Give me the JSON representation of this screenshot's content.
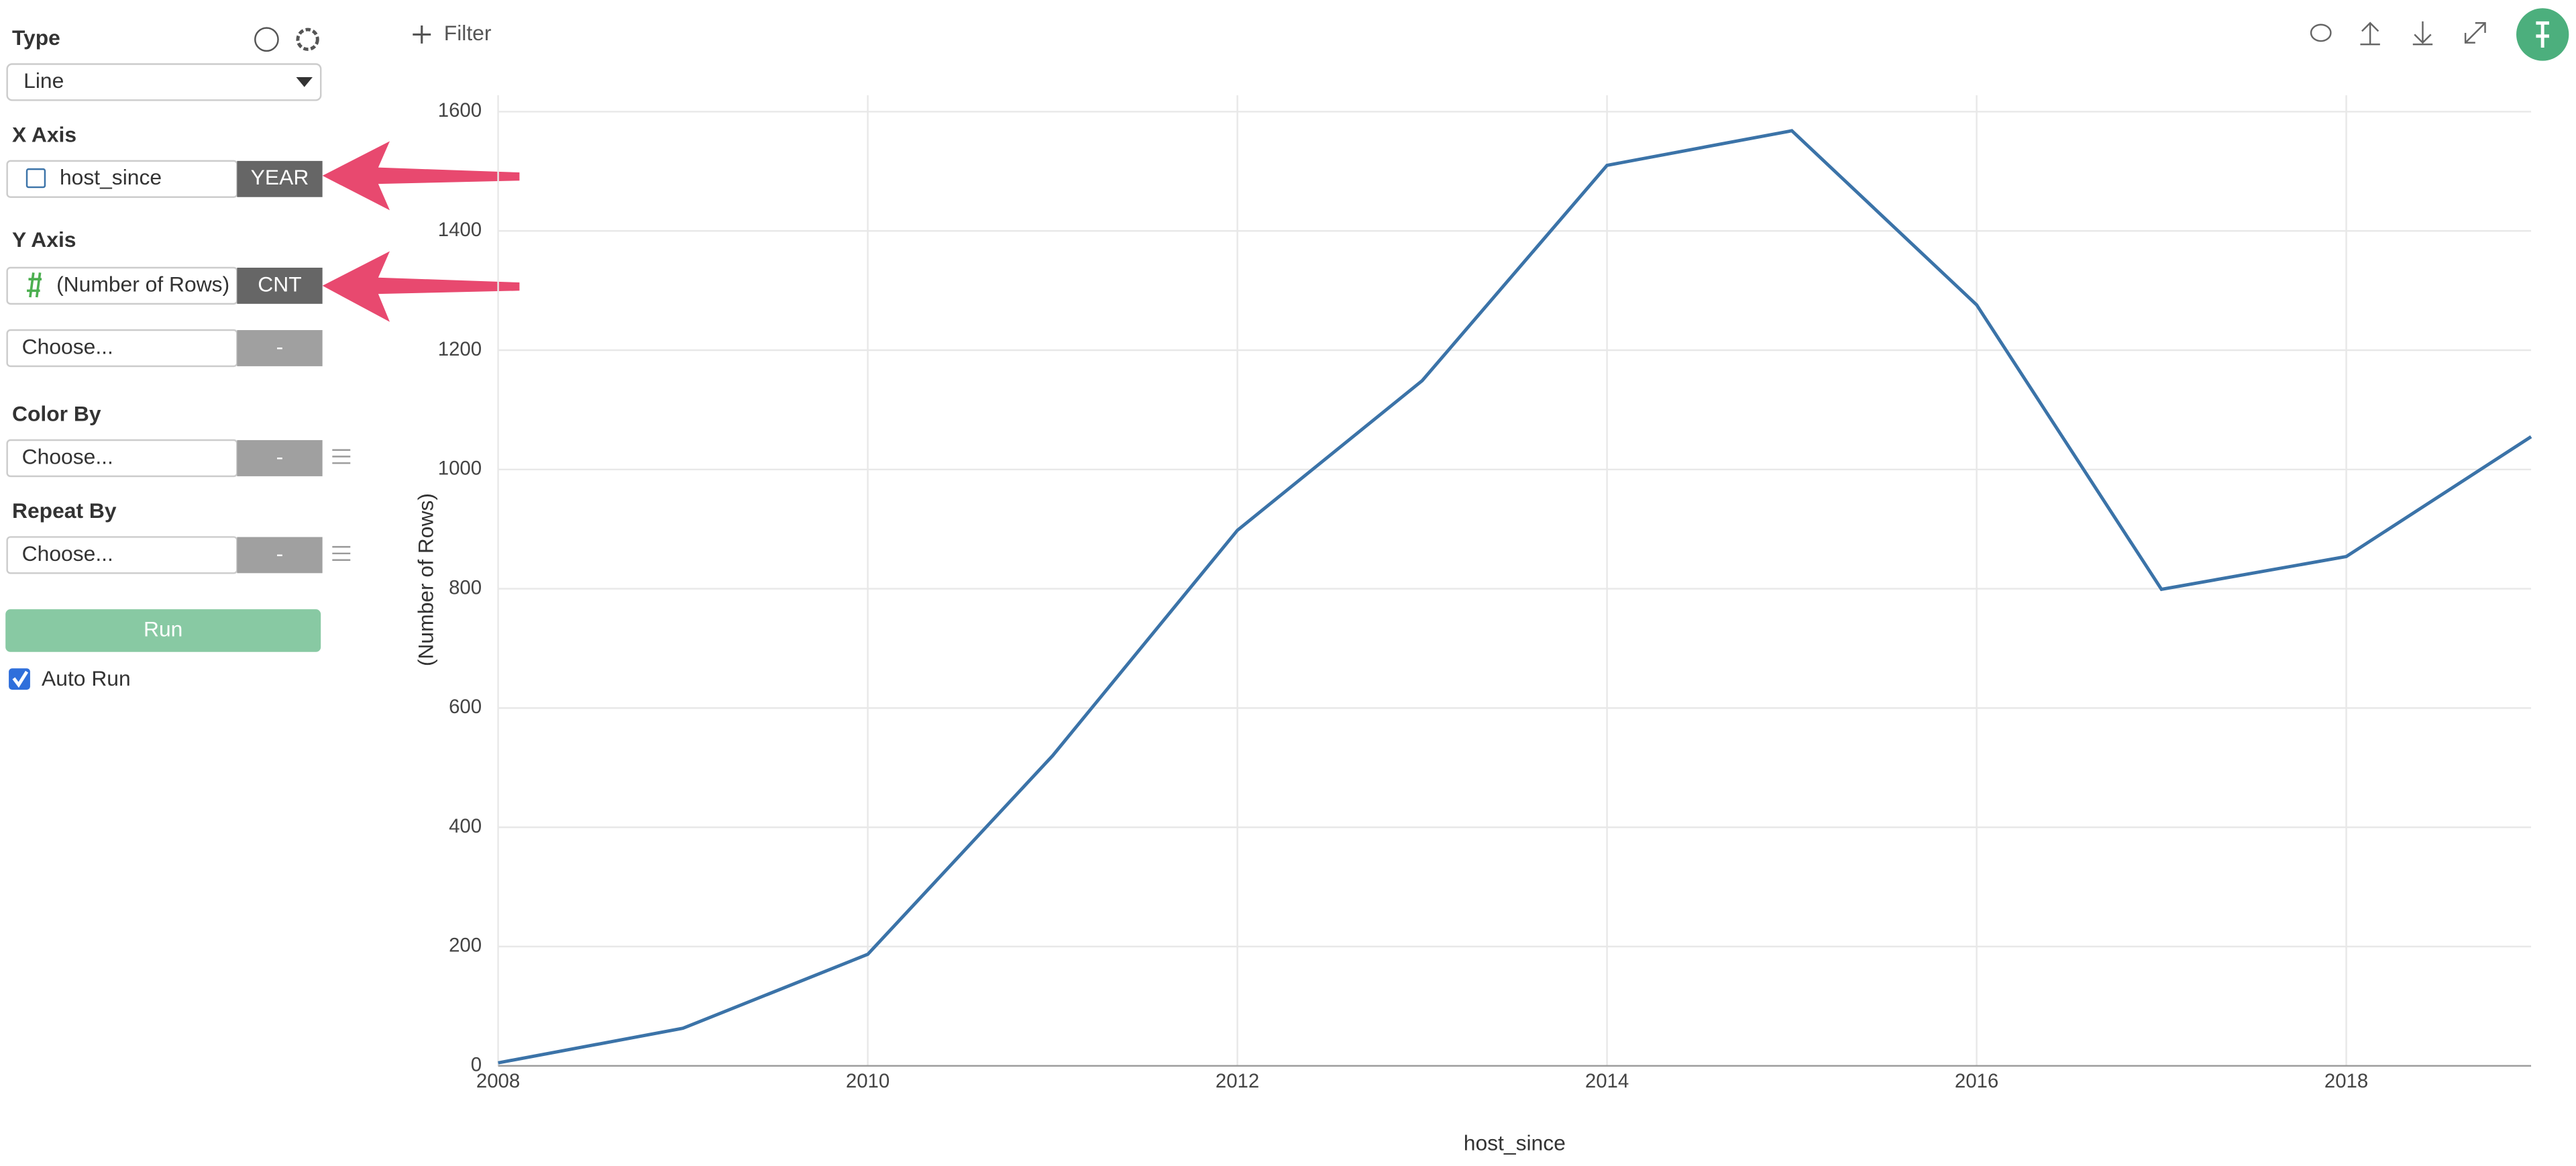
{
  "sidebar": {
    "type_label": "Type",
    "type_value": "Line",
    "x_axis_label": "X Axis",
    "x_field": "host_since",
    "x_agg": "YEAR",
    "y_axis_label": "Y Axis",
    "y_field": "(Number of Rows)",
    "y_agg": "CNT",
    "y2_placeholder": "Choose...",
    "y2_agg": "-",
    "color_by_label": "Color By",
    "color_placeholder": "Choose...",
    "color_agg": "-",
    "repeat_by_label": "Repeat By",
    "repeat_placeholder": "Choose...",
    "repeat_agg": "-",
    "run": "Run",
    "auto_run": "Auto Run"
  },
  "toolbar": {
    "filter": "Filter"
  },
  "chart_data": {
    "type": "line",
    "x_label": "host_since",
    "y_label": "(Number of Rows)",
    "x": [
      2008,
      2009,
      2010,
      2011,
      2012,
      2013,
      2014,
      2015,
      2016,
      2017,
      2018,
      2019
    ],
    "values": [
      5,
      63,
      187,
      520,
      898,
      1149,
      1510,
      1568,
      1276,
      799,
      854,
      1055
    ],
    "color": "#3b73a8",
    "xlim": [
      2008,
      2019
    ],
    "ylim": [
      0,
      1600
    ],
    "xticks": [
      2008,
      2010,
      2012,
      2014,
      2016,
      2018
    ],
    "yticks": [
      0,
      200,
      400,
      600,
      800,
      1000,
      1200,
      1400,
      1600
    ],
    "grid": true
  }
}
